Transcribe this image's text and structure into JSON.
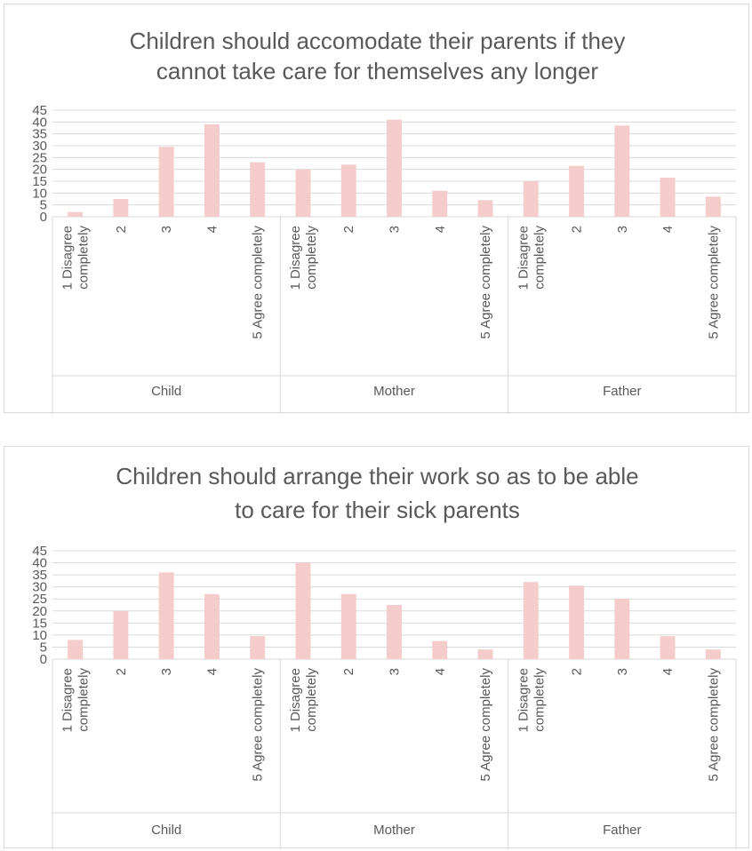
{
  "chart_data": [
    {
      "type": "bar",
      "title": "Children should accomodate their parents if they cannot take care for themselves any longer",
      "title_lines": [
        "Children should accomodate their parents if they",
        "cannot take care for themselves any longer"
      ],
      "groups": [
        "Child",
        "Mother",
        "Father"
      ],
      "categories": [
        [
          "1 Disagree",
          "completely"
        ],
        [
          "2"
        ],
        [
          "3"
        ],
        [
          "4"
        ],
        [
          "5 Agree completely"
        ]
      ],
      "yticks": [
        0,
        5,
        10,
        15,
        20,
        25,
        30,
        35,
        40,
        45
      ],
      "ylim": [
        0,
        45
      ],
      "grid": true,
      "bar_color": "#f4cccc",
      "series": [
        {
          "group": "Child",
          "values": [
            2,
            7.5,
            29.5,
            39,
            23
          ]
        },
        {
          "group": "Mother",
          "values": [
            20,
            22,
            41,
            11,
            7
          ]
        },
        {
          "group": "Father",
          "values": [
            15,
            21.5,
            38.5,
            16.5,
            8.5
          ]
        }
      ]
    },
    {
      "type": "bar",
      "title": "Children should arrange their work so as to be able to care for their sick parents",
      "title_lines": [
        "Children should arrange their work so as to be able",
        "to care for their sick parents"
      ],
      "groups": [
        "Child",
        "Mother",
        "Father"
      ],
      "categories": [
        [
          "1 Disagree",
          "completely"
        ],
        [
          "2"
        ],
        [
          "3"
        ],
        [
          "4"
        ],
        [
          "5 Agree completely"
        ]
      ],
      "yticks": [
        0,
        5,
        10,
        15,
        20,
        25,
        30,
        35,
        40,
        45
      ],
      "ylim": [
        0,
        45
      ],
      "grid": true,
      "bar_color": "#f4cccc",
      "series": [
        {
          "group": "Child",
          "values": [
            8,
            20,
            36,
            27,
            9.5
          ]
        },
        {
          "group": "Mother",
          "values": [
            40,
            27,
            22.5,
            7.5,
            4
          ]
        },
        {
          "group": "Father",
          "values": [
            32,
            30.5,
            25,
            9.5,
            4
          ]
        }
      ]
    }
  ]
}
